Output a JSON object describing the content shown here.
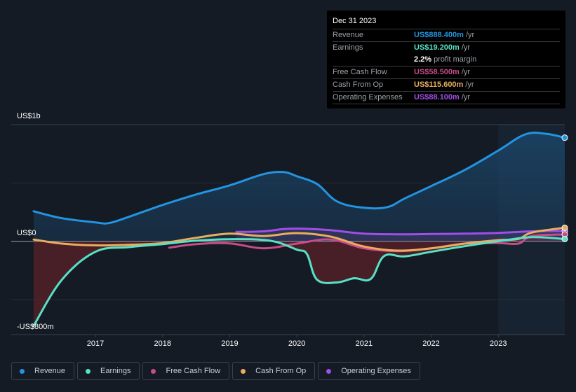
{
  "chart_data": {
    "type": "area",
    "title": "",
    "xlabel": "",
    "ylabel": "",
    "y_unit": "US$ millions",
    "ylim": [
      -800,
      1000
    ],
    "xlim": [
      2016.08,
      2023.99
    ],
    "y_tick_labels": [
      "US$1b",
      "US$0",
      "-US$800m"
    ],
    "y_ticks": [
      1000,
      0,
      -800
    ],
    "x_ticks": [
      2017,
      2018,
      2019,
      2020,
      2021,
      2022,
      2023
    ],
    "x_tick_labels": [
      "2017",
      "2018",
      "2019",
      "2020",
      "2021",
      "2022",
      "2023"
    ],
    "grid": true,
    "highlight_period": [
      2023.0,
      2023.99
    ],
    "legend_position": "bottom",
    "series": [
      {
        "name": "Revenue",
        "color": "#2394df",
        "x": [
          2016.08,
          2016.5,
          2017.0,
          2017.2,
          2017.5,
          2018.0,
          2018.5,
          2019.0,
          2019.5,
          2019.8,
          2020.0,
          2020.3,
          2020.6,
          2021.0,
          2021.35,
          2021.6,
          2022.0,
          2022.5,
          2023.0,
          2023.4,
          2023.7,
          2023.99
        ],
        "values": [
          257,
          198,
          162,
          156,
          210,
          311,
          401,
          479,
          575,
          593,
          557,
          491,
          341,
          287,
          293,
          365,
          473,
          611,
          778,
          916,
          922,
          888
        ]
      },
      {
        "name": "Earnings",
        "color": "#58e1c5",
        "x": [
          2016.08,
          2016.5,
          2017.0,
          2017.5,
          2018.0,
          2018.5,
          2019.0,
          2019.6,
          2020.0,
          2020.15,
          2020.3,
          2020.6,
          2020.85,
          2021.1,
          2021.3,
          2021.6,
          2022.0,
          2022.5,
          2023.0,
          2023.5,
          2023.99
        ],
        "values": [
          -725,
          -330,
          -90,
          -50,
          -24,
          5,
          18,
          5,
          -72,
          -110,
          -329,
          -353,
          -317,
          -323,
          -126,
          -130,
          -90,
          -42,
          0,
          35,
          19.2
        ]
      },
      {
        "name": "Free Cash Flow",
        "color": "#c84b8a",
        "x": [
          2018.1,
          2018.5,
          2019.0,
          2019.5,
          2020.0,
          2020.5,
          2021.0,
          2021.5,
          2022.0,
          2022.5,
          2023.0,
          2023.3,
          2023.5,
          2023.99
        ],
        "values": [
          -55,
          -25,
          -18,
          -60,
          -20,
          15,
          -60,
          -85,
          -60,
          -20,
          -15,
          -20,
          45,
          58.5
        ]
      },
      {
        "name": "Cash From Op",
        "color": "#e9ad5f",
        "x": [
          2016.08,
          2016.5,
          2017.0,
          2017.5,
          2018.0,
          2018.5,
          2019.0,
          2019.5,
          2020.0,
          2020.5,
          2021.0,
          2021.5,
          2022.0,
          2022.5,
          2023.0,
          2023.3,
          2023.5,
          2023.99
        ],
        "values": [
          15,
          -20,
          -35,
          -30,
          -15,
          30,
          65,
          45,
          70,
          40,
          -45,
          -80,
          -60,
          -20,
          10,
          20,
          75,
          115.6
        ]
      },
      {
        "name": "Operating Expenses",
        "color": "#a04ee8",
        "x": [
          2019.1,
          2019.5,
          2019.8,
          2020.1,
          2020.5,
          2021.0,
          2021.5,
          2022.0,
          2022.5,
          2023.0,
          2023.5,
          2023.99
        ],
        "values": [
          80,
          85,
          105,
          108,
          95,
          65,
          60,
          62,
          65,
          72,
          85,
          88.1
        ]
      }
    ]
  },
  "tooltip": {
    "date": "Dec 31 2023",
    "rows": [
      {
        "label": "Revenue",
        "value": "US$888.400m",
        "unit": "/yr",
        "color": "#2394df"
      },
      {
        "label": "Earnings",
        "value": "US$19.200m",
        "unit": "/yr",
        "color": "#58e1c5"
      },
      {
        "label": "",
        "value": "2.2%",
        "unit": "profit margin",
        "color": "#ffffff"
      },
      {
        "label": "Free Cash Flow",
        "value": "US$58.500m",
        "unit": "/yr",
        "color": "#c84b8a"
      },
      {
        "label": "Cash From Op",
        "value": "US$115.600m",
        "unit": "/yr",
        "color": "#e9ad5f"
      },
      {
        "label": "Operating Expenses",
        "value": "US$88.100m",
        "unit": "/yr",
        "color": "#a04ee8"
      }
    ]
  },
  "legend": [
    {
      "label": "Revenue",
      "color": "#2394df"
    },
    {
      "label": "Earnings",
      "color": "#58e1c5"
    },
    {
      "label": "Free Cash Flow",
      "color": "#c84b8a"
    },
    {
      "label": "Cash From Op",
      "color": "#e9ad5f"
    },
    {
      "label": "Operating Expenses",
      "color": "#a04ee8"
    }
  ]
}
